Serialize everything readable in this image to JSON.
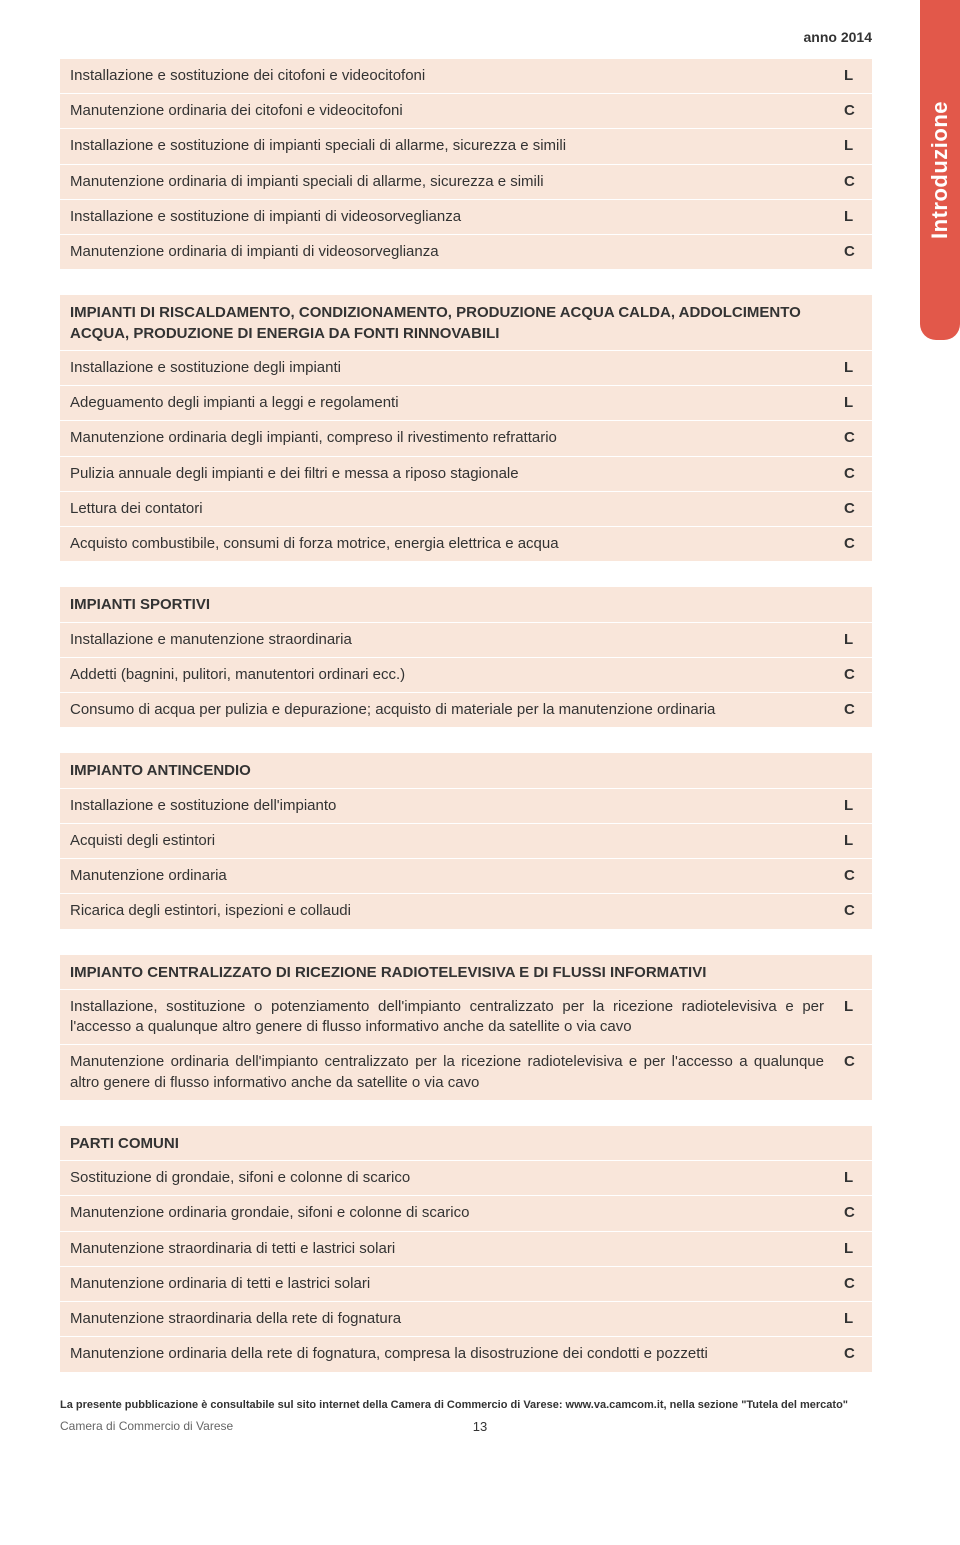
{
  "year_label": "anno 2014",
  "side_tab": "Introduzione",
  "sections": [
    {
      "header": null,
      "rows": [
        {
          "label": "Installazione e sostituzione dei citofoni e videocitofoni",
          "code": "L"
        },
        {
          "label": "Manutenzione ordinaria dei citofoni e videocitofoni",
          "code": "C"
        },
        {
          "label": "Installazione e sostituzione di impianti speciali di allarme, sicurezza e simili",
          "code": "L"
        },
        {
          "label": "Manutenzione ordinaria di impianti speciali di allarme, sicurezza e simili",
          "code": "C"
        },
        {
          "label": "Installazione e sostituzione di impianti di videosorveglianza",
          "code": "L"
        },
        {
          "label": "Manutenzione ordinaria di impianti di videosorveglianza",
          "code": "C"
        }
      ]
    },
    {
      "header": "IMPIANTI DI RISCALDAMENTO, CONDIZIONAMENTO, PRODUZIONE ACQUA CALDA, ADDOLCIMENTO ACQUA, PRODUZIONE DI ENERGIA DA FONTI RINNOVABILI",
      "rows": [
        {
          "label": "Installazione e sostituzione degli impianti",
          "code": "L"
        },
        {
          "label": "Adeguamento degli impianti a leggi e regolamenti",
          "code": "L"
        },
        {
          "label": "Manutenzione ordinaria degli impianti, compreso il rivestimento refrattario",
          "code": "C"
        },
        {
          "label": "Pulizia annuale degli impianti e dei filtri e messa a riposo stagionale",
          "code": "C"
        },
        {
          "label": "Lettura dei contatori",
          "code": "C"
        },
        {
          "label": "Acquisto combustibile, consumi di forza motrice, energia elettrica e acqua",
          "code": "C"
        }
      ]
    },
    {
      "header": "IMPIANTI SPORTIVI",
      "rows": [
        {
          "label": "Installazione e manutenzione straordinaria",
          "code": "L"
        },
        {
          "label": "Addetti (bagnini, pulitori, manutentori ordinari ecc.)",
          "code": "C"
        },
        {
          "label": "Consumo di acqua per pulizia e depurazione; acquisto di materiale per la manutenzione ordinaria",
          "code": "C"
        }
      ]
    },
    {
      "header": "IMPIANTO ANTINCENDIO",
      "rows": [
        {
          "label": "Installazione e sostituzione dell'impianto",
          "code": "L"
        },
        {
          "label": "Acquisti degli estintori",
          "code": "L"
        },
        {
          "label": "Manutenzione ordinaria",
          "code": "C"
        },
        {
          "label": "Ricarica degli estintori, ispezioni e collaudi",
          "code": "C"
        }
      ]
    },
    {
      "header": "IMPIANTO CENTRALIZZATO DI RICEZIONE RADIOTELEVISIVA E DI FLUSSI INFORMATIVI",
      "rows": [
        {
          "label": "Installazione, sostituzione o potenziamento dell'impianto centralizzato per la ricezione radiotelevisiva e per l'accesso a qualunque altro genere di flusso informativo anche da satellite o via cavo",
          "code": "L"
        },
        {
          "label": "Manutenzione ordinaria dell'impianto centralizzato per la ricezione radiotelevisiva e per l'accesso a qualunque altro genere di flusso informativo anche da satellite o via cavo",
          "code": "C"
        }
      ]
    },
    {
      "header": "PARTI COMUNI",
      "rows": [
        {
          "label": "Sostituzione di grondaie, sifoni e colonne di scarico",
          "code": "L"
        },
        {
          "label": "Manutenzione ordinaria grondaie, sifoni e colonne di scarico",
          "code": "C"
        },
        {
          "label": "Manutenzione straordinaria di tetti e lastrici solari",
          "code": "L"
        },
        {
          "label": "Manutenzione ordinaria di tetti e lastrici solari",
          "code": "C"
        },
        {
          "label": "Manutenzione straordinaria della rete di fognatura",
          "code": "L"
        },
        {
          "label": "Manutenzione ordinaria della rete di fognatura, compresa la disostruzione dei condotti e pozzetti",
          "code": "C"
        }
      ]
    }
  ],
  "footer_note": "La presente pubblicazione è consultabile sul sito internet della Camera di Commercio di Varese: www.va.camcom.it, nella sezione \"Tutela del mercato\"",
  "footer_left": "Camera di Commercio di Varese",
  "page_number": "13"
}
